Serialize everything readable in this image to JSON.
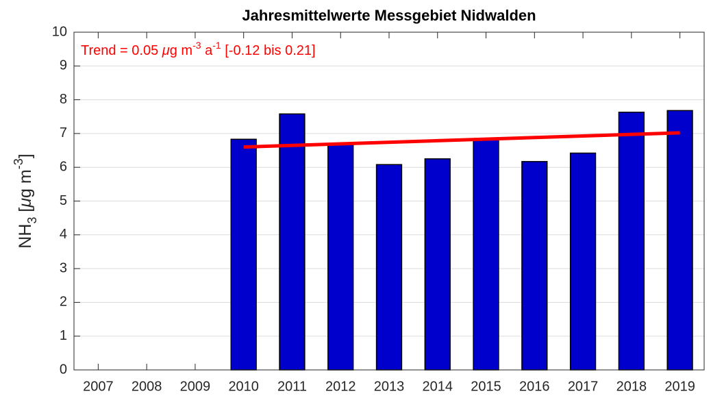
{
  "chart_data": {
    "type": "bar",
    "title": "Jahresmittelwerte Messgebiet Nidwalden",
    "y_label": [
      {
        "text": "NH"
      },
      {
        "text": "3",
        "shift": "sub"
      },
      {
        "text": " ["
      },
      {
        "text": "μ",
        "italic": true
      },
      {
        "text": "g m"
      },
      {
        "text": "-3",
        "shift": "super"
      },
      {
        "text": "]"
      }
    ],
    "categories": [
      "2007",
      "2008",
      "2009",
      "2010",
      "2011",
      "2012",
      "2013",
      "2014",
      "2015",
      "2016",
      "2017",
      "2018",
      "2019"
    ],
    "values": [
      null,
      null,
      null,
      6.83,
      7.58,
      6.7,
      6.08,
      6.25,
      6.85,
      6.17,
      6.42,
      7.63,
      7.68
    ],
    "color": "#0000cd",
    "ylim": [
      0,
      10
    ],
    "yticks": [
      0,
      1,
      2,
      3,
      4,
      5,
      6,
      7,
      8,
      9,
      10
    ],
    "grid": true,
    "trend": {
      "x": [
        2010,
        2019
      ],
      "values": [
        6.6,
        7.02
      ],
      "color": "#ff0000"
    },
    "annotation": [
      {
        "text": "Trend = 0.05 "
      },
      {
        "text": "μ",
        "italic": true
      },
      {
        "text": "g m"
      },
      {
        "text": "-3",
        "shift": "super"
      },
      {
        "text": " a"
      },
      {
        "text": "-1",
        "shift": "super"
      },
      {
        "text": " [-0.12 bis 0.21]"
      }
    ]
  }
}
